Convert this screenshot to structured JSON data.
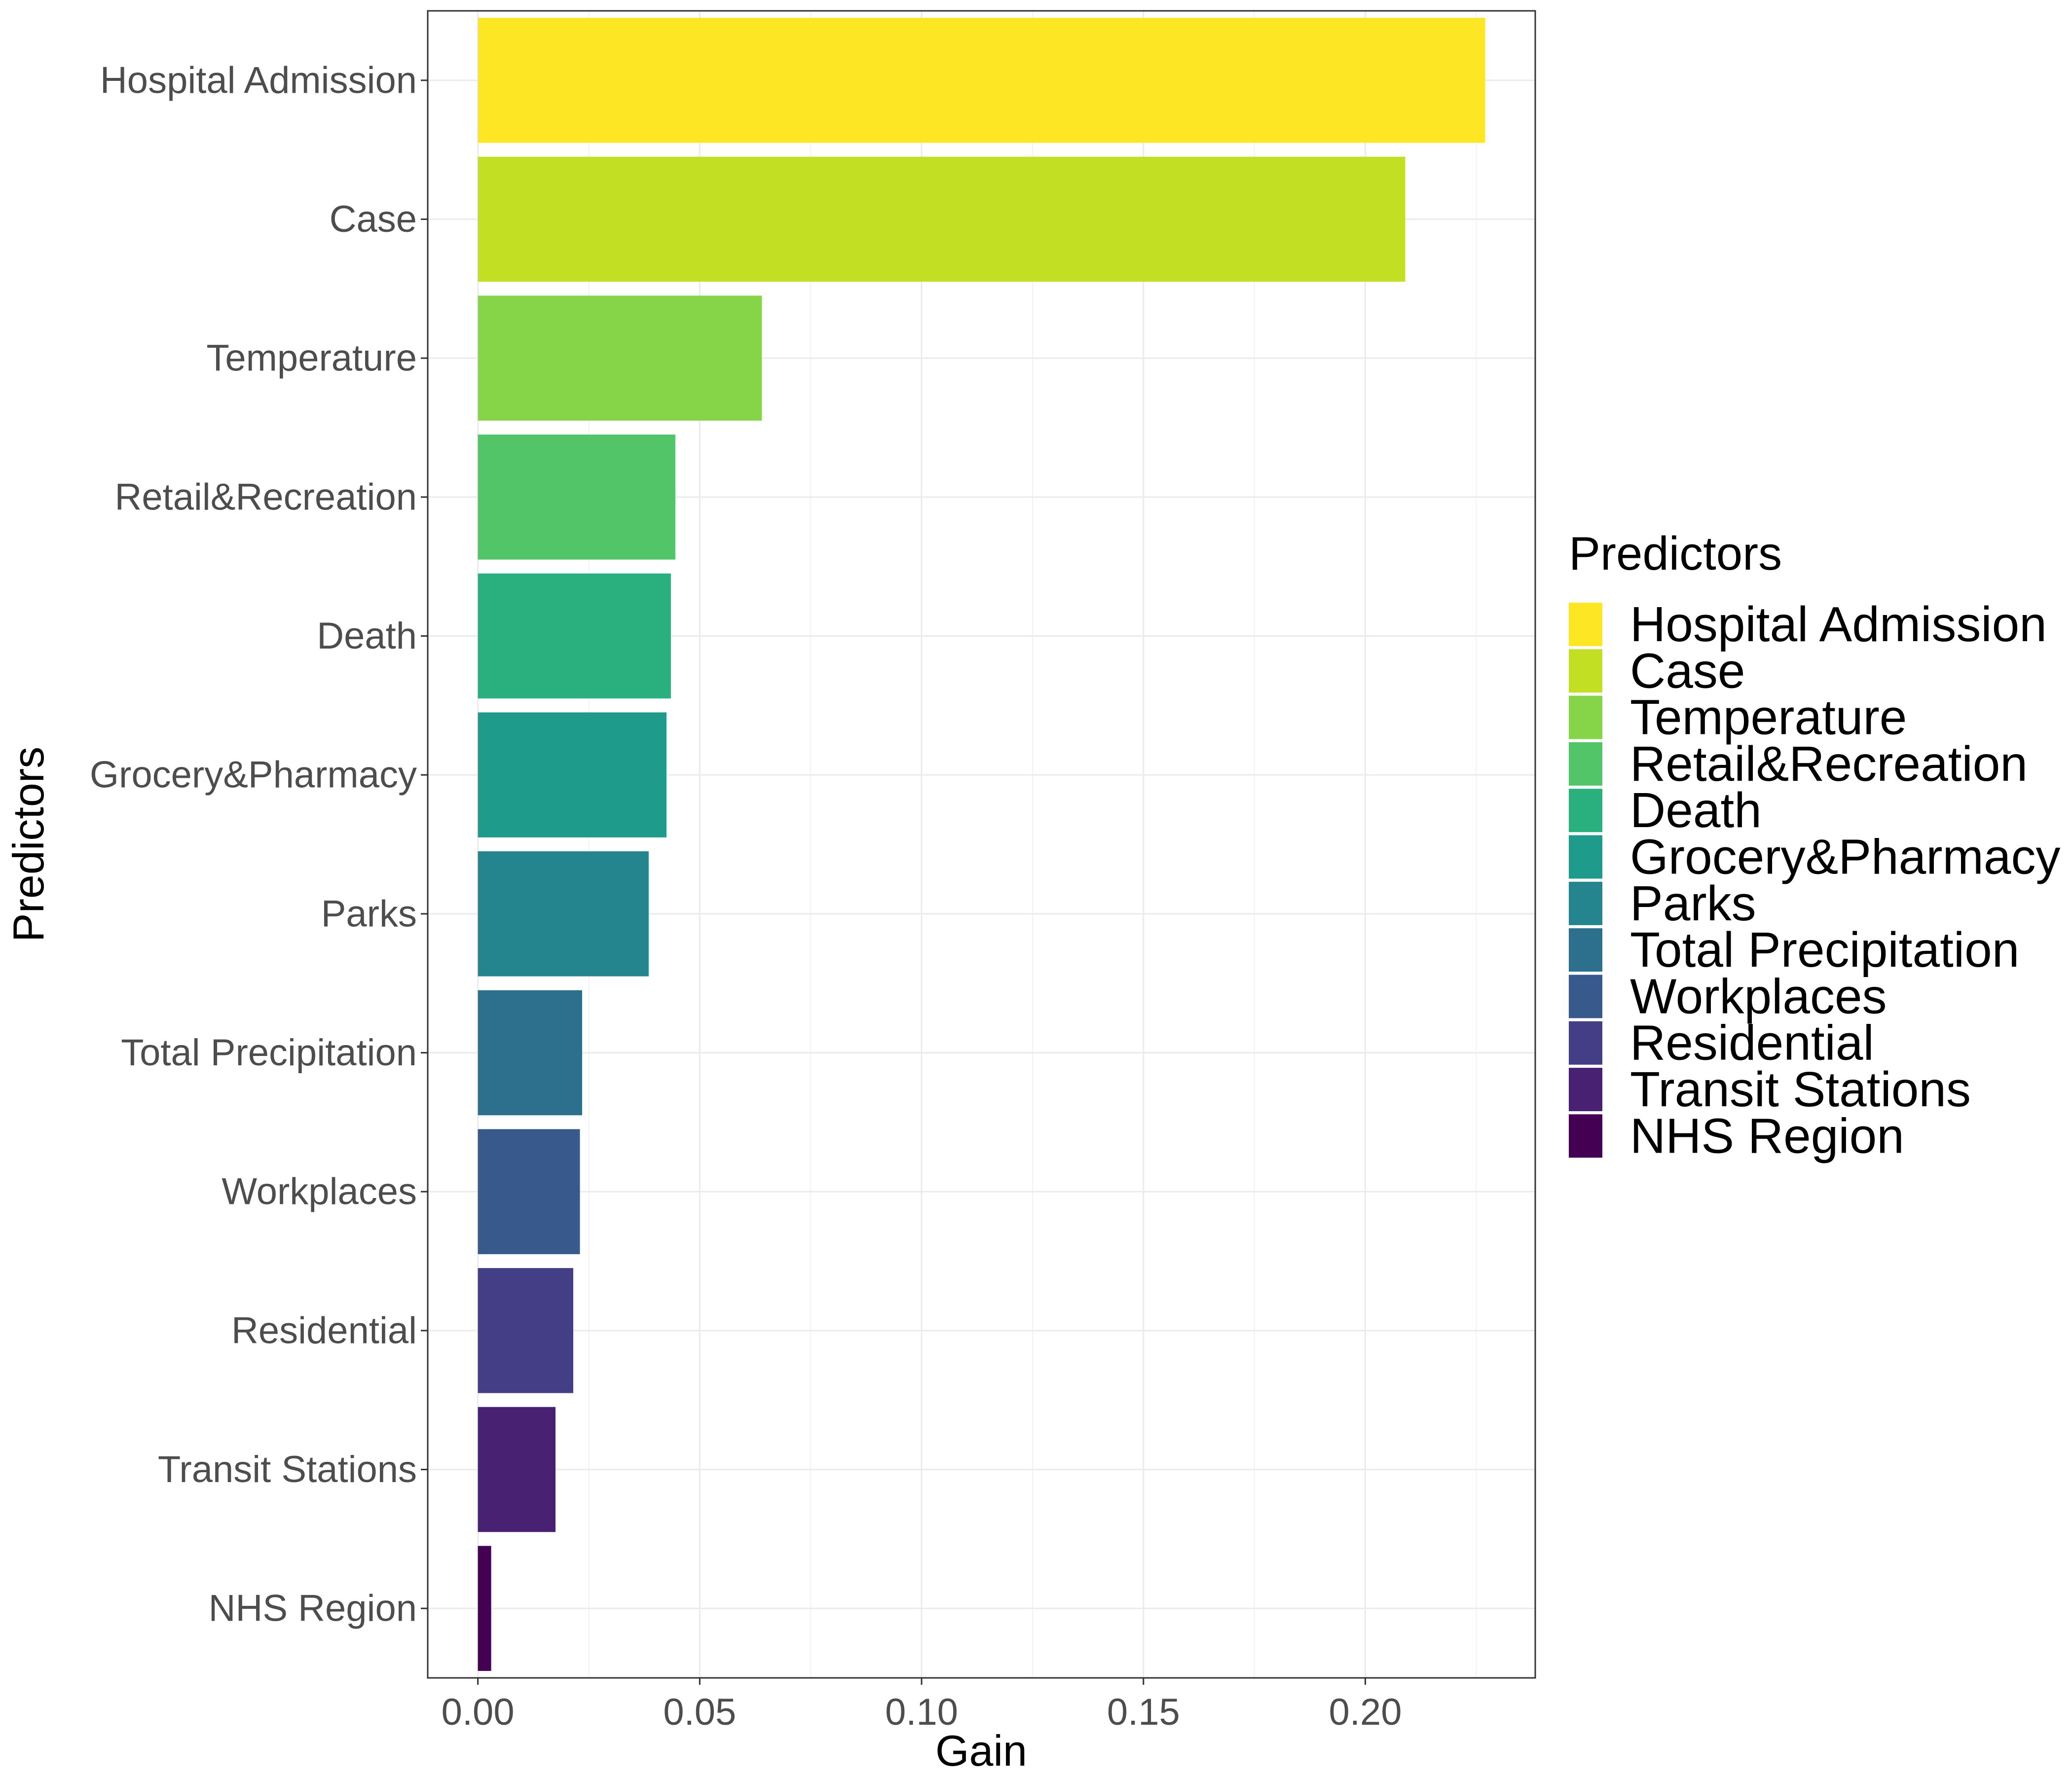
{
  "chart_data": {
    "type": "bar",
    "orientation": "horizontal",
    "xlabel": "Gain",
    "ylabel": "Predictors",
    "xlim": [
      -0.0113,
      0.2383
    ],
    "x_ticks": [
      0.0,
      0.05,
      0.1,
      0.15,
      0.2
    ],
    "x_tick_labels": [
      "0.00",
      "0.05",
      "0.10",
      "0.15",
      "0.20"
    ],
    "grid": true,
    "legend": {
      "title": "Predictors",
      "position": "right"
    },
    "categories": [
      "Hospital Admission",
      "Case",
      "Temperature",
      "Retail&Recreation",
      "Death",
      "Grocery&Pharmacy",
      "Parks",
      "Total Precipitation",
      "Workplaces",
      "Residential",
      "Transit Stations",
      "NHS Region"
    ],
    "values": [
      0.227,
      0.209,
      0.064,
      0.0445,
      0.0435,
      0.0425,
      0.0385,
      0.0235,
      0.023,
      0.0215,
      0.0175,
      0.003
    ],
    "colors": [
      "#FDE725",
      "#C2DF23",
      "#86D549",
      "#52C569",
      "#2AB07F",
      "#1E9B8A",
      "#25858E",
      "#2D708E",
      "#38598C",
      "#433E85",
      "#482173",
      "#440154"
    ]
  }
}
